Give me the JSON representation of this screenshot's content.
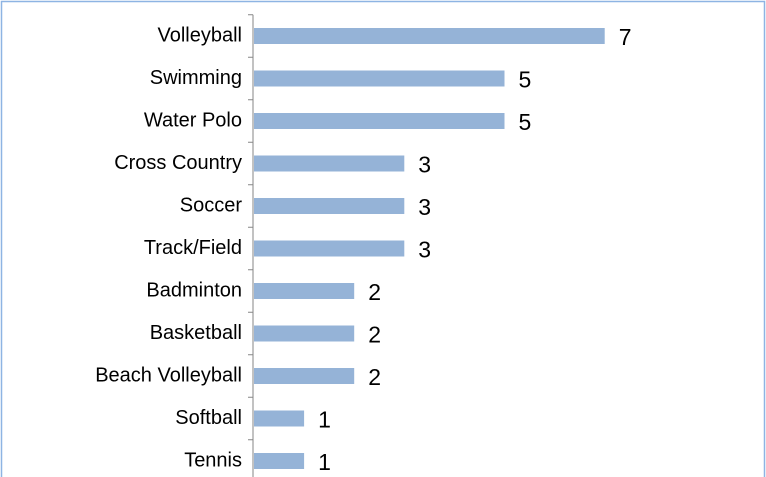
{
  "chart_data": {
    "type": "bar",
    "orientation": "horizontal",
    "categories": [
      "Volleyball",
      "Swimming",
      "Water Polo",
      "Cross Country",
      "Soccer",
      "Track/Field",
      "Badminton",
      "Basketball",
      "Beach Volleyball",
      "Softball",
      "Tennis"
    ],
    "values": [
      7,
      5,
      5,
      3,
      3,
      3,
      2,
      2,
      2,
      1,
      1
    ],
    "color": "#95b3d7"
  }
}
